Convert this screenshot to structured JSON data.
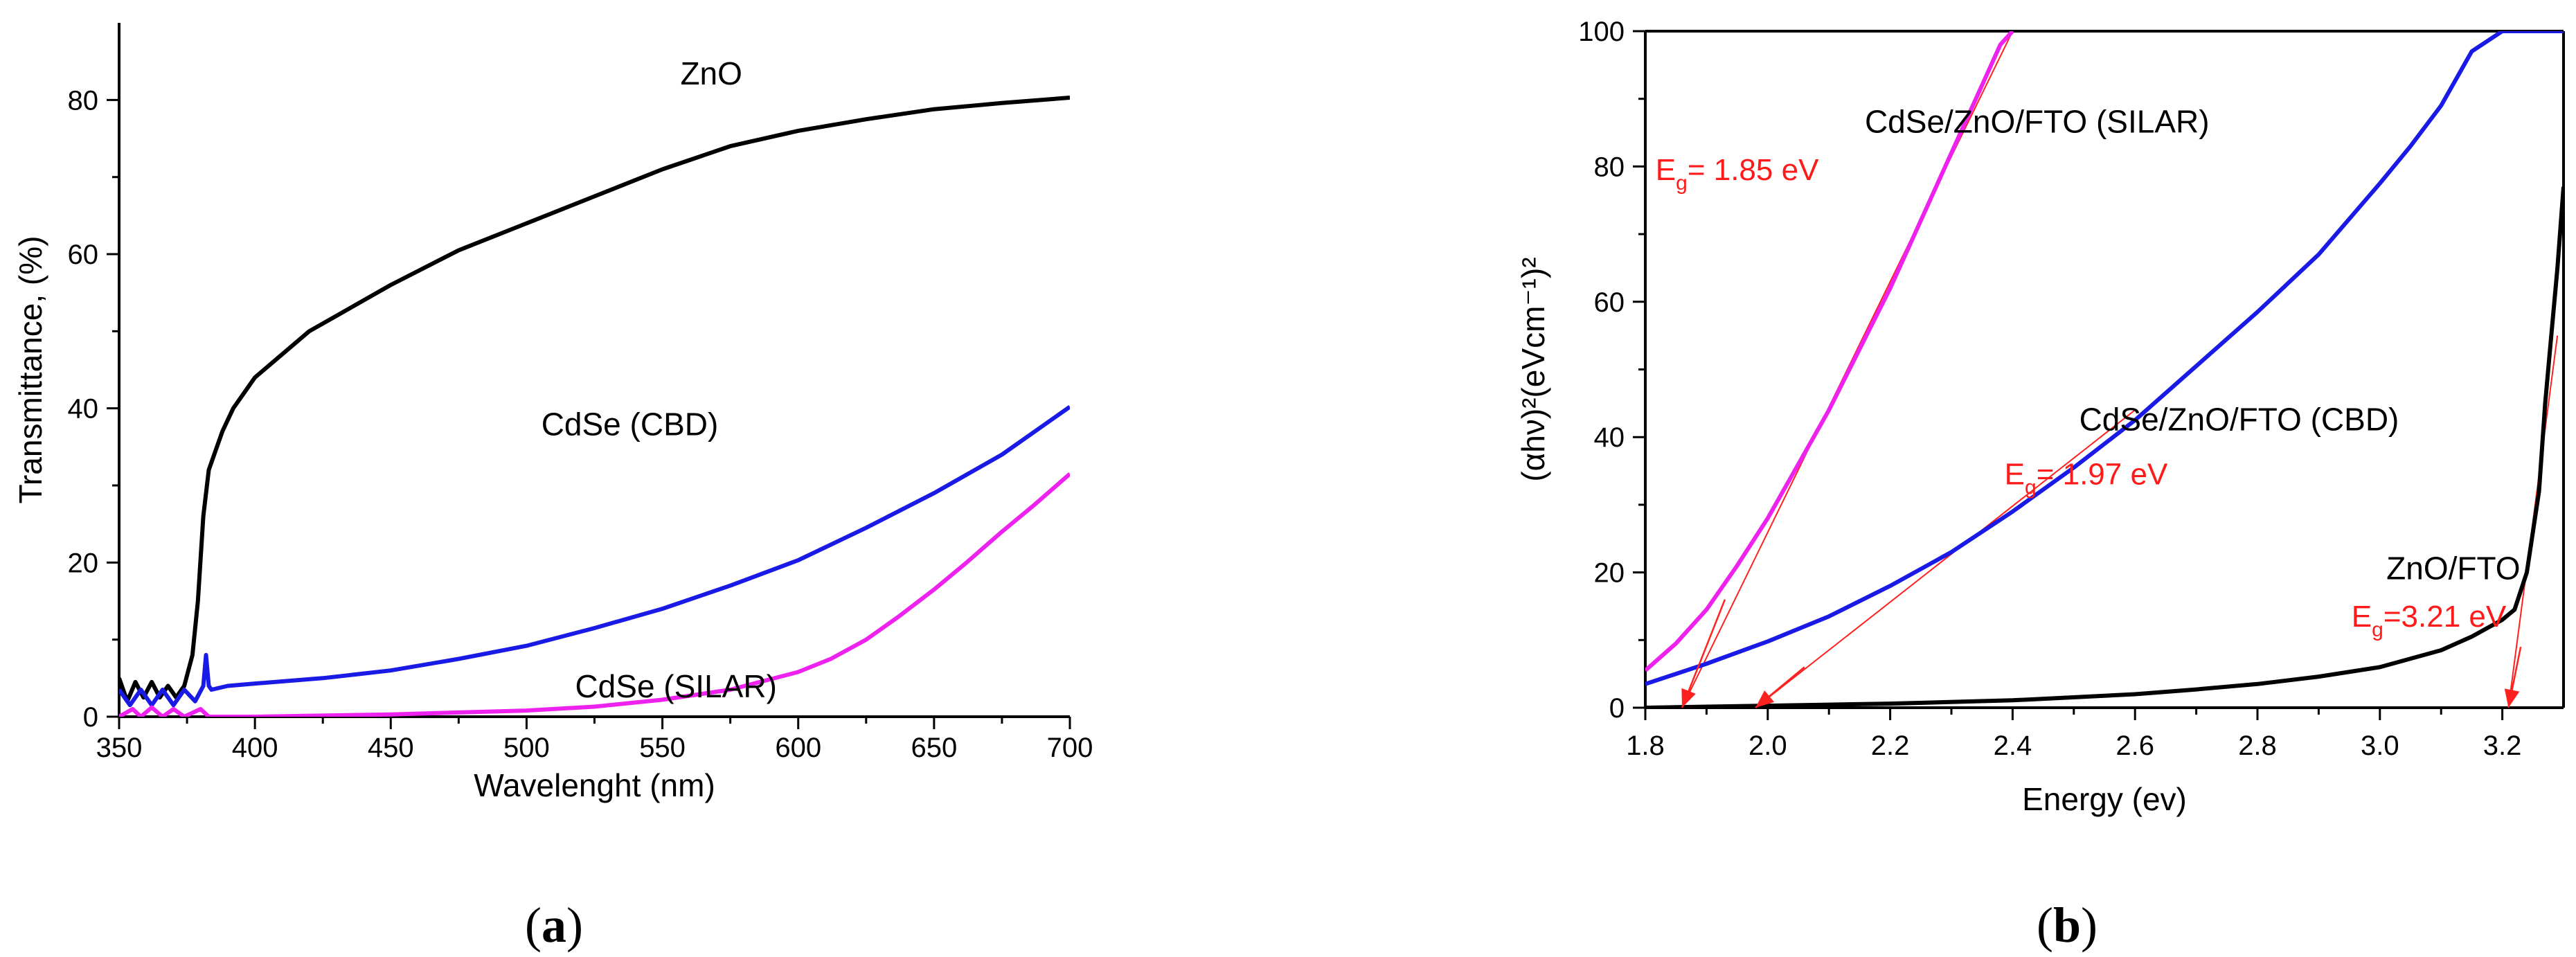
{
  "colors": {
    "black": "#000000",
    "blue": "#1a1ae6",
    "magenta": "#ee22ee",
    "red": "#ff2020"
  },
  "chart_data": [
    {
      "panel": "a",
      "type": "line",
      "xlabel": "Wavelenght (nm)",
      "ylabel": "Transmittance, (%)",
      "xlim": [
        350,
        700
      ],
      "ylim": [
        0,
        90
      ],
      "xticks": [
        350,
        400,
        450,
        500,
        550,
        600,
        650,
        700
      ],
      "yticks": [
        0,
        20,
        40,
        60,
        80
      ],
      "panel_label": {
        "open": "(",
        "letter": "a",
        "close": ")"
      },
      "series": [
        {
          "name": "ZnO",
          "color": "#000000",
          "x": [
            350,
            353,
            356,
            359,
            362,
            365,
            368,
            371,
            374,
            377,
            379,
            381,
            383,
            385,
            388,
            392,
            396,
            400,
            410,
            420,
            430,
            450,
            475,
            500,
            525,
            550,
            575,
            600,
            625,
            650,
            675,
            700
          ],
          "y": [
            5,
            2,
            4.5,
            2.5,
            4.5,
            2.5,
            4,
            2.5,
            4,
            8,
            15,
            26,
            32,
            34,
            37,
            40,
            42,
            44,
            47,
            50,
            52,
            56,
            60.5,
            64,
            67.5,
            71,
            74,
            76,
            77.5,
            78.8,
            79.6,
            80.3
          ]
        },
        {
          "name": "CdSe (CBD)",
          "color": "#1a1ae6",
          "x": [
            350,
            354,
            358,
            362,
            366,
            370,
            374,
            378,
            381,
            382,
            383,
            384,
            390,
            400,
            425,
            450,
            475,
            500,
            525,
            550,
            575,
            600,
            625,
            650,
            675,
            700
          ],
          "y": [
            3.5,
            1.5,
            3.5,
            1.5,
            3.5,
            1.5,
            3.5,
            2,
            4,
            8,
            4,
            3.5,
            4,
            4.3,
            5,
            6,
            7.5,
            9.2,
            11.5,
            14,
            17,
            20.3,
            24.5,
            29,
            34,
            40.2
          ]
        },
        {
          "name": "CdSe (SILAR)",
          "color": "#ee22ee",
          "x": [
            350,
            355,
            358,
            362,
            366,
            370,
            374,
            380,
            383,
            390,
            400,
            450,
            500,
            525,
            550,
            575,
            600,
            612,
            625,
            637,
            650,
            662,
            675,
            687,
            700
          ],
          "y": [
            0,
            1,
            0,
            1.2,
            0,
            1,
            0,
            1,
            0,
            0,
            0,
            0.3,
            0.8,
            1.3,
            2.2,
            3.5,
            5.8,
            7.5,
            10,
            13,
            16.5,
            20,
            24,
            27.5,
            31.5
          ]
        }
      ],
      "annotations": [
        {
          "text": "ZnO",
          "x": 568,
          "y": 82
        },
        {
          "text": "CdSe (CBD)",
          "x": 538,
          "y": 36.5
        },
        {
          "text": "CdSe (SILAR)",
          "x": 555,
          "y": 2.5
        }
      ]
    },
    {
      "panel": "b",
      "type": "line",
      "xlabel": "Energy (ev)",
      "ylabel": "(αhν)²(eVcm⁻¹)²",
      "xlim": [
        1.8,
        3.3
      ],
      "ylim": [
        0,
        100
      ],
      "xticks": [
        1.8,
        2.0,
        2.2,
        2.4,
        2.6,
        2.8,
        3.0,
        3.2
      ],
      "xticklabels": [
        "1.8",
        "2.0",
        "2.2",
        "2.4",
        "2.6",
        "2.8",
        "3.0",
        "3.2"
      ],
      "yticks": [
        0,
        20,
        40,
        60,
        80,
        100
      ],
      "panel_label": {
        "open": "(",
        "letter": "b",
        "close": ")"
      },
      "series": [
        {
          "name": "CdSe/ZnO/FTO (SILAR)",
          "color": "#ee22ee",
          "x": [
            1.8,
            1.85,
            1.9,
            1.95,
            2.0,
            2.05,
            2.1,
            2.15,
            2.2,
            2.25,
            2.3,
            2.35,
            2.38,
            2.4
          ],
          "y": [
            5.5,
            9.5,
            14.5,
            21,
            28,
            36,
            44,
            53,
            62,
            72,
            82,
            92,
            98,
            100
          ]
        },
        {
          "name": "CdSe/ZnO/FTO (CBD)",
          "color": "#1a1ae6",
          "x": [
            1.8,
            1.9,
            2.0,
            2.1,
            2.2,
            2.3,
            2.4,
            2.5,
            2.6,
            2.7,
            2.8,
            2.9,
            3.0,
            3.05,
            3.1,
            3.15,
            3.2,
            3.3
          ],
          "y": [
            3.5,
            6.5,
            9.8,
            13.5,
            18,
            23,
            29,
            35.5,
            42.5,
            50.5,
            58.5,
            67,
            77.5,
            83,
            89,
            97,
            100,
            100
          ]
        },
        {
          "name": "ZnO/FTO",
          "color": "#000000",
          "x": [
            1.8,
            2.0,
            2.2,
            2.4,
            2.6,
            2.7,
            2.8,
            2.9,
            3.0,
            3.1,
            3.15,
            3.2,
            3.22,
            3.24,
            3.26,
            3.27,
            3.28,
            3.29,
            3.3
          ],
          "y": [
            0,
            0.3,
            0.6,
            1.1,
            2,
            2.7,
            3.5,
            4.6,
            6,
            8.5,
            10.5,
            13,
            14.5,
            20,
            32,
            45,
            55,
            65,
            77
          ]
        }
      ],
      "fit_lines": [
        {
          "x": [
            1.86,
            2.4
          ],
          "y": [
            0,
            100
          ]
        },
        {
          "x": [
            1.98,
            2.6
          ],
          "y": [
            0,
            44
          ]
        },
        {
          "x": [
            3.21,
            3.29
          ],
          "y": [
            0,
            55
          ]
        }
      ],
      "arrows": [
        {
          "from": [
            1.93,
            16
          ],
          "to": [
            1.86,
            0
          ]
        },
        {
          "from": [
            2.06,
            6
          ],
          "to": [
            1.98,
            0
          ]
        },
        {
          "from": [
            3.23,
            9
          ],
          "to": [
            3.21,
            0
          ]
        }
      ],
      "annotations": [
        {
          "text": "CdSe/ZnO/FTO (SILAR)",
          "x": 2.44,
          "y": 85
        },
        {
          "text": "CdSe/ZnO/FTO (CBD)",
          "x": 2.77,
          "y": 41
        },
        {
          "text": "ZnO/FTO",
          "x": 3.12,
          "y": 19
        }
      ],
      "band_gaps": [
        {
          "prefix": "E",
          "sub": "g",
          "value": "= 1.85 eV",
          "x": 1.95,
          "y": 78
        },
        {
          "prefix": "E",
          "sub": "g",
          "value": "= 1.97 eV",
          "x": 2.52,
          "y": 33
        },
        {
          "prefix": "E",
          "sub": "g",
          "value": "=3.21 eV",
          "x": 3.08,
          "y": 12
        }
      ]
    }
  ]
}
